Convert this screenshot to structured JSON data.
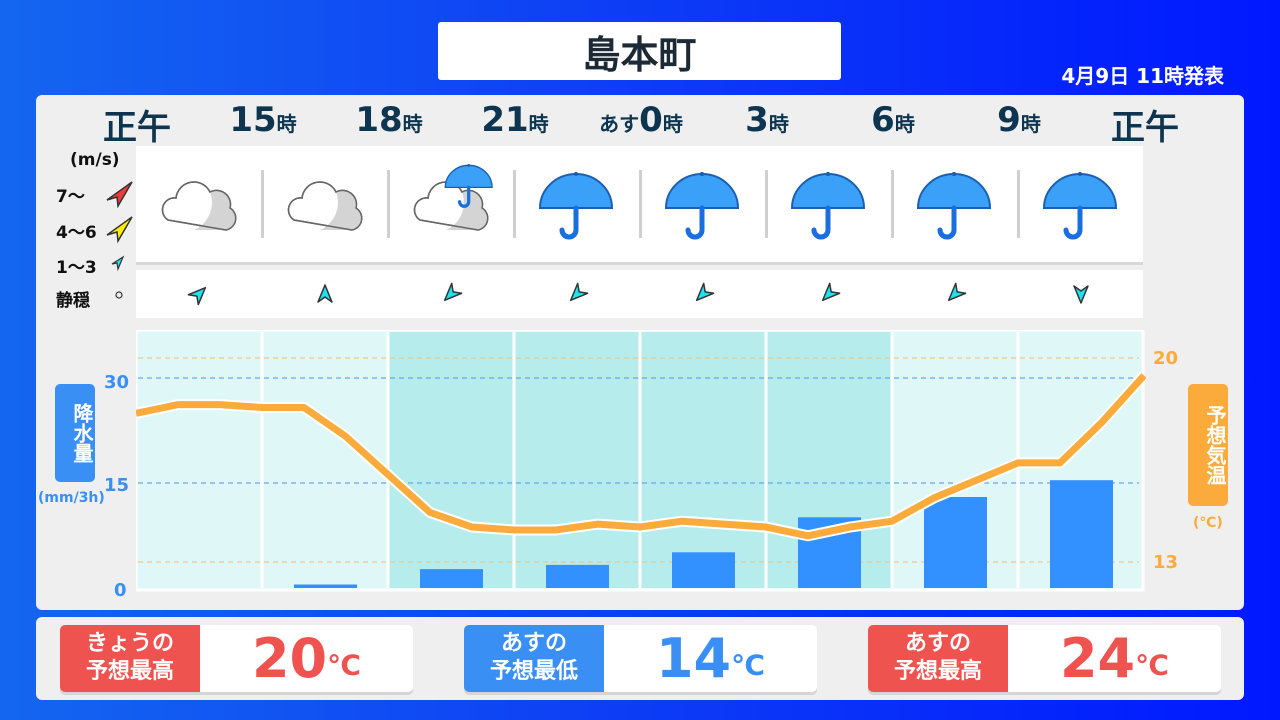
{
  "header": {
    "location": "島本町",
    "issued": "4月9日 11時発表"
  },
  "colors": {
    "orange": "#fbab3c",
    "blue": "#3a8ff5",
    "red": "#ef5350",
    "navy": "#0e3550",
    "cyan": "#1de3f0"
  },
  "times": [
    {
      "num": "正午",
      "unit": ""
    },
    {
      "num": "15",
      "unit": "時"
    },
    {
      "num": "18",
      "unit": "時"
    },
    {
      "num": "21",
      "unit": "時"
    },
    {
      "pre": "あす",
      "num": "0",
      "unit": "時"
    },
    {
      "num": "3",
      "unit": "時"
    },
    {
      "num": "6",
      "unit": "時"
    },
    {
      "num": "9",
      "unit": "時"
    },
    {
      "num": "正午",
      "unit": ""
    }
  ],
  "wind_legend": {
    "unit": "(m/s)",
    "strong": "7〜",
    "medium": "4〜6",
    "weak": "1〜3",
    "calm": "静穏"
  },
  "weather": [
    "cloudy-icon",
    "cloudy-icon",
    "cloudy-rain-icon",
    "umbrella-icon",
    "umbrella-icon",
    "umbrella-icon",
    "umbrella-icon",
    "umbrella-icon"
  ],
  "wind": [
    {
      "speed": "1〜3",
      "direction_deg": 45
    },
    {
      "speed": "1〜3",
      "direction_deg": 0
    },
    {
      "speed": "1〜3",
      "direction_deg": 225
    },
    {
      "speed": "1〜3",
      "direction_deg": 225
    },
    {
      "speed": "1〜3",
      "direction_deg": 225
    },
    {
      "speed": "1〜3",
      "direction_deg": 225
    },
    {
      "speed": "1〜3",
      "direction_deg": 225
    },
    {
      "speed": "1〜3",
      "direction_deg": 180
    }
  ],
  "chart_data": {
    "type": "bar+line",
    "precip": {
      "label": "降水量",
      "unit": "(mm/3h)",
      "ticks": [
        "30",
        "15",
        "0"
      ],
      "ylim": [
        0,
        30
      ],
      "values": [
        0,
        0.5,
        2.7,
        3.3,
        5.1,
        10.1,
        13,
        15.4
      ]
    },
    "temp": {
      "label": "予想気温",
      "unit": "(℃)",
      "ticks": [
        "20",
        "13"
      ],
      "ylim": [
        13,
        20
      ],
      "values": [
        18.1,
        18.4,
        18.4,
        18.3,
        18.3,
        17.3,
        16.0,
        14.7,
        14.2,
        14.1,
        14.1,
        14.3,
        14.2,
        14.4,
        14.3,
        14.2,
        13.9,
        14.2,
        14.4,
        15.2,
        15.8,
        16.4,
        16.4,
        17.8,
        19.4
      ]
    },
    "shaded_slots": [
      2,
      3,
      4,
      5
    ]
  },
  "summary": [
    {
      "label1": "きょうの",
      "label2": "予想最高",
      "value": "20",
      "unit": "℃",
      "color": "#ef5350"
    },
    {
      "label1": "あすの",
      "label2": "予想最低",
      "value": "14",
      "unit": "℃",
      "color": "#3a8ff5"
    },
    {
      "label1": "あすの",
      "label2": "予想最高",
      "value": "24",
      "unit": "℃",
      "color": "#ef5350"
    }
  ]
}
